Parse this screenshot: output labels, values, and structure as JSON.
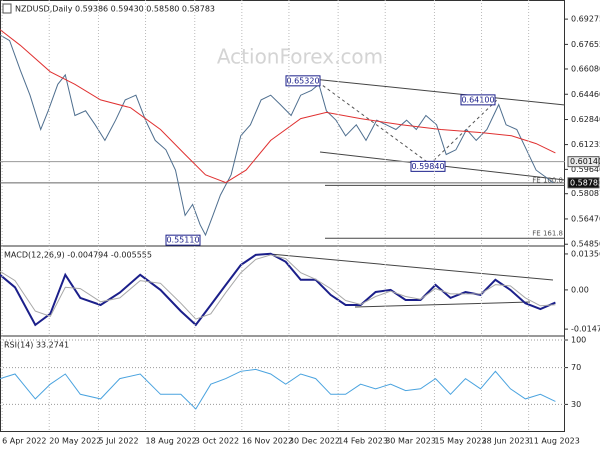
{
  "chart_data": [
    {
      "type": "line",
      "title": "NZDUSD,Daily 0.59386 0.59430 0.58580 0.58783",
      "watermark": "ActionForex.com",
      "xlim": [
        "2022-04-04",
        "2023-09-14"
      ],
      "ylim": [
        0.548,
        0.705
      ],
      "yticks": [
        0.69275,
        0.67655,
        {
          "value": 0.6608,
          "label": "0.66080"
        },
        {
          "value": 0.6446,
          "label": "0.64460"
        },
        {
          "value": 0.6284,
          "label": "0.62840"
        },
        0.61235,
        0.59646,
        0.58087,
        {
          "value": 0.5647,
          "label": "0.56470"
        },
        {
          "value": 0.5485,
          "label": "0.54850"
        }
      ],
      "levels": [
        {
          "value": 0.6014,
          "label": "0.60140"
        },
        {
          "value": 0.58783,
          "label": "0.58783"
        }
      ],
      "annotations": [
        {
          "value": 0.6532,
          "label": "0.65320"
        },
        {
          "value": 0.641,
          "label": "0.64100"
        },
        {
          "value": 0.5984,
          "label": "0.59840"
        },
        {
          "value": 0.5511,
          "label": "0.55110"
        }
      ],
      "fe_levels": [
        {
          "value": 0.5862,
          "label": "FE 100.0"
        },
        {
          "value": 0.5523,
          "label": "FE 161.8"
        }
      ],
      "series": [
        {
          "color": "#4f6f8f",
          "x": [
            "2022-04-04",
            "2022-04-13",
            "2022-04-23",
            "2022-05-02",
            "2022-05-12",
            "2022-05-19",
            "2022-05-28",
            "2022-06-04",
            "2022-06-13",
            "2022-06-23",
            "2022-07-02",
            "2022-07-11",
            "2022-07-21",
            "2022-07-30",
            "2022-08-09",
            "2022-08-18",
            "2022-08-27",
            "2022-09-06",
            "2022-09-15",
            "2022-09-24",
            "2022-10-01",
            "2022-10-08",
            "2022-10-13",
            "2022-10-20",
            "2022-10-27",
            "2022-11-06",
            "2022-11-15",
            "2022-11-24",
            "2022-12-04",
            "2022-12-13",
            "2022-12-22",
            "2023-01-01",
            "2023-01-10",
            "2023-01-20",
            "2023-01-27",
            "2023-02-03",
            "2023-02-12",
            "2023-02-21",
            "2023-03-03",
            "2023-03-12",
            "2023-03-22",
            "2023-03-31",
            "2023-04-09",
            "2023-04-19",
            "2023-04-28",
            "2023-05-07",
            "2023-05-17",
            "2023-05-26",
            "2023-06-04",
            "2023-06-14",
            "2023-06-23",
            "2023-07-03",
            "2023-07-14",
            "2023-07-21",
            "2023-07-31",
            "2023-08-09",
            "2023-08-18",
            "2023-08-28",
            "2023-09-03"
          ],
          "values": [
            0.6826,
            0.679,
            0.66,
            0.644,
            0.622,
            0.634,
            0.651,
            0.657,
            0.631,
            0.634,
            0.625,
            0.615,
            0.628,
            0.641,
            0.644,
            0.628,
            0.615,
            0.609,
            0.596,
            0.567,
            0.574,
            0.561,
            0.5544,
            0.567,
            0.58,
            0.593,
            0.618,
            0.625,
            0.641,
            0.644,
            0.638,
            0.631,
            0.644,
            0.647,
            0.651,
            0.634,
            0.628,
            0.618,
            0.625,
            0.615,
            0.628,
            0.625,
            0.622,
            0.628,
            0.622,
            0.631,
            0.625,
            0.606,
            0.609,
            0.622,
            0.615,
            0.622,
            0.638,
            0.625,
            0.622,
            0.609,
            0.596,
            0.591,
            0.5878
          ]
        },
        {
          "color": "#e03131",
          "x": [
            "2022-04-04",
            "2022-04-23",
            "2022-05-21",
            "2022-06-13",
            "2022-07-07",
            "2022-08-04",
            "2022-09-01",
            "2022-09-24",
            "2022-10-13",
            "2022-11-01",
            "2022-11-20",
            "2022-12-13",
            "2023-01-10",
            "2023-02-03",
            "2023-03-07",
            "2023-04-14",
            "2023-05-21",
            "2023-06-28",
            "2023-07-26",
            "2023-08-18",
            "2023-09-05"
          ],
          "values": [
            0.686,
            0.676,
            0.659,
            0.651,
            0.641,
            0.636,
            0.622,
            0.606,
            0.593,
            0.588,
            0.596,
            0.615,
            0.629,
            0.633,
            0.629,
            0.625,
            0.622,
            0.62,
            0.618,
            0.613,
            0.607
          ]
        }
      ]
    },
    {
      "type": "line",
      "title": "MACD(12,26,9) -0.004794 -0.005555",
      "xlim": [
        "2022-04-04",
        "2023-09-14"
      ],
      "ylim": [
        -0.017,
        0.0158
      ],
      "yticks": [
        0.01356,
        {
          "value": 0,
          "label": "0.00"
        },
        -0.014783
      ],
      "series": [
        {
          "color": "#1b1f8a",
          "width": 2,
          "x": [
            "2022-04-04",
            "2022-04-18",
            "2022-05-07",
            "2022-05-21",
            "2022-06-04",
            "2022-06-18",
            "2022-07-07",
            "2022-07-25",
            "2022-08-13",
            "2022-09-01",
            "2022-09-20",
            "2022-10-04",
            "2022-10-18",
            "2022-11-01",
            "2022-11-15",
            "2022-11-29",
            "2022-12-13",
            "2022-12-27",
            "2023-01-10",
            "2023-01-24",
            "2023-02-07",
            "2023-02-21",
            "2023-03-07",
            "2023-03-21",
            "2023-04-04",
            "2023-04-18",
            "2023-05-02",
            "2023-05-16",
            "2023-05-30",
            "2023-06-13",
            "2023-06-27",
            "2023-07-11",
            "2023-07-25",
            "2023-08-08",
            "2023-08-22",
            "2023-09-05"
          ],
          "values": [
            0.0057,
            0.001,
            -0.0132,
            -0.009,
            0.0057,
            -0.003,
            -0.0057,
            -0.001,
            0.0057,
            0,
            -0.008,
            -0.0132,
            -0.0057,
            0.0019,
            0.0094,
            0.0132,
            0.0136,
            0.0106,
            0.0038,
            0.0038,
            -0.0019,
            -0.0057,
            -0.0057,
            -0.0008,
            0,
            -0.0038,
            -0.0038,
            0.0019,
            -0.003,
            -0.0008,
            -0.0019,
            0.0038,
            0,
            -0.005,
            -0.0072,
            -0.0048
          ]
        },
        {
          "color": "#a8a8a8",
          "width": 1,
          "x": [
            "2022-04-04",
            "2022-04-18",
            "2022-05-07",
            "2022-05-21",
            "2022-06-04",
            "2022-06-18",
            "2022-07-07",
            "2022-07-25",
            "2022-08-13",
            "2022-09-01",
            "2022-09-20",
            "2022-10-04",
            "2022-10-18",
            "2022-11-01",
            "2022-11-15",
            "2022-11-29",
            "2022-12-13",
            "2022-12-27",
            "2023-01-10",
            "2023-01-24",
            "2023-02-07",
            "2023-02-21",
            "2023-03-07",
            "2023-03-21",
            "2023-04-04",
            "2023-04-18",
            "2023-05-02",
            "2023-05-16",
            "2023-05-30",
            "2023-06-13",
            "2023-06-27",
            "2023-07-11",
            "2023-07-25",
            "2023-08-08",
            "2023-08-22",
            "2023-09-05"
          ],
          "values": [
            0.007,
            0.0035,
            -0.008,
            -0.01,
            0.001,
            0.0005,
            -0.0045,
            -0.003,
            0.0035,
            0.0025,
            -0.005,
            -0.011,
            -0.009,
            -0.001,
            0.0065,
            0.0115,
            0.0132,
            0.0118,
            0.0065,
            0.004,
            0.0005,
            -0.004,
            -0.0055,
            -0.0025,
            -0.0005,
            -0.0025,
            -0.0035,
            0.0005,
            -0.0015,
            -0.0015,
            -0.0015,
            0.002,
            0.0015,
            -0.003,
            -0.006,
            -0.0056
          ]
        }
      ]
    },
    {
      "type": "line",
      "title": "RSI(14) 33.2741",
      "grid": true,
      "xlim": [
        "2022-04-04",
        "2023-09-14"
      ],
      "ylim": [
        0,
        100
      ],
      "yticks": [
        100,
        70,
        30
      ],
      "xticks": [
        {
          "value": "2022-04-06",
          "label": "6 Apr 2022"
        },
        {
          "value": "2022-05-20",
          "label": "20 May 2022"
        },
        {
          "value": "2022-07-05",
          "label": "5 Jul 2022"
        },
        {
          "value": "2022-08-18",
          "label": "18 Aug 2022"
        },
        {
          "value": "2022-10-03",
          "label": "3 Oct 2022"
        },
        {
          "value": "2022-11-16",
          "label": "16 Nov 2022"
        },
        {
          "value": "2022-12-30",
          "label": "30 Dec 2022"
        },
        {
          "value": "2023-02-14",
          "label": "14 Feb 2023"
        },
        {
          "value": "2023-03-30",
          "label": "30 Mar 2023"
        },
        {
          "value": "2023-05-15",
          "label": "15 May 2023"
        },
        {
          "value": "2023-06-28",
          "label": "28 Jun 2023"
        },
        {
          "value": "2023-08-11",
          "label": "11 Aug 2023"
        }
      ],
      "series": [
        {
          "color": "#4aa3df",
          "x": [
            "2022-04-04",
            "2022-04-18",
            "2022-05-07",
            "2022-05-21",
            "2022-06-04",
            "2022-06-18",
            "2022-07-07",
            "2022-07-25",
            "2022-08-13",
            "2022-09-01",
            "2022-09-20",
            "2022-10-04",
            "2022-10-18",
            "2022-11-01",
            "2022-11-15",
            "2022-11-29",
            "2022-12-13",
            "2022-12-27",
            "2023-01-10",
            "2023-01-24",
            "2023-02-07",
            "2023-02-21",
            "2023-03-07",
            "2023-03-21",
            "2023-04-04",
            "2023-04-18",
            "2023-05-02",
            "2023-05-16",
            "2023-05-30",
            "2023-06-13",
            "2023-06-27",
            "2023-07-11",
            "2023-07-25",
            "2023-08-08",
            "2023-08-22",
            "2023-09-05"
          ],
          "values": [
            58,
            63,
            36,
            52,
            63,
            41,
            36,
            58,
            63,
            41,
            41,
            25,
            52,
            58,
            66,
            68,
            63,
            52,
            63,
            58,
            41,
            41,
            52,
            47,
            52,
            45,
            47,
            58,
            41,
            58,
            47,
            66,
            47,
            36,
            41,
            33.27
          ]
        }
      ]
    }
  ]
}
